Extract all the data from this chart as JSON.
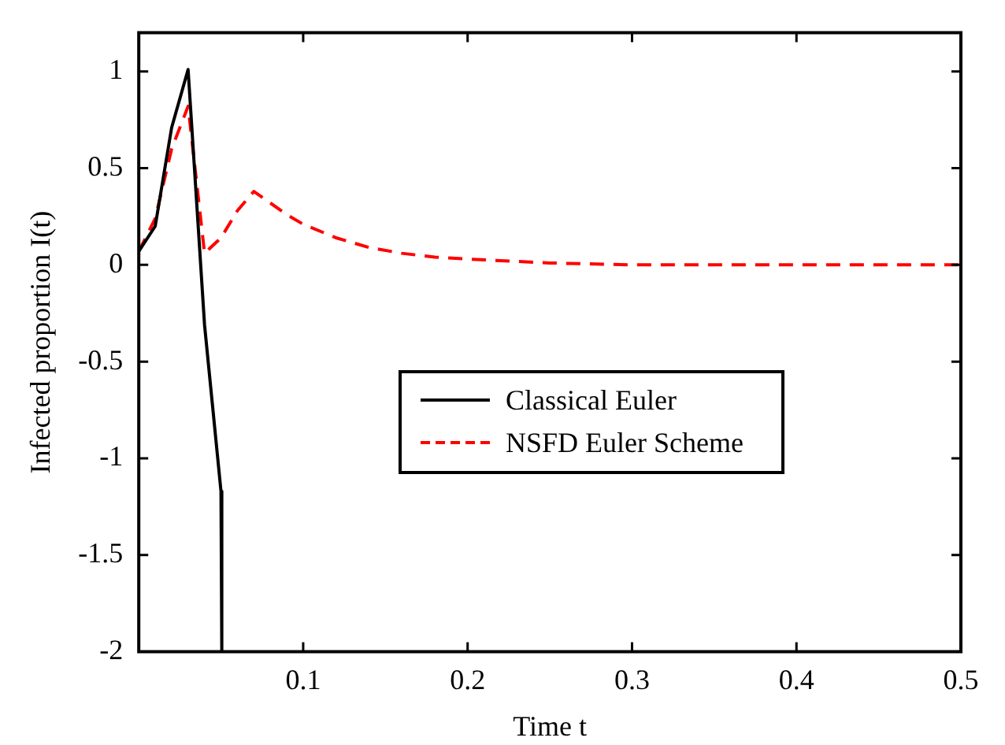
{
  "chart_data": {
    "type": "line",
    "xlabel": "Time t",
    "ylabel": "Infected proportion I(t)",
    "xlim": [
      0,
      0.5
    ],
    "xticks": [
      0.1,
      0.2,
      0.3,
      0.4,
      0.5
    ],
    "ylim": [
      -2,
      1.2
    ],
    "yticks": [
      -2,
      -1.5,
      -1,
      -0.5,
      0,
      0.5,
      1
    ],
    "grid": false,
    "legend": "right",
    "marker": "none",
    "series": [
      {
        "name": "Classical Euler",
        "color": "#000000",
        "line_style": "solid",
        "x": [
          0,
          0.01,
          0.02,
          0.03,
          0.04,
          0.05,
          0.0505
        ],
        "values": [
          0.07,
          0.2,
          0.71,
          1.01,
          -0.31,
          -1.17,
          -2
        ]
      },
      {
        "name": "NSFD Euler Scheme",
        "color": "#ff0000",
        "line_style": "dashed",
        "x": [
          0,
          0.01,
          0.02,
          0.03,
          0.04,
          0.05,
          0.06,
          0.07,
          0.08,
          0.09,
          0.1,
          0.12,
          0.14,
          0.16,
          0.18,
          0.2,
          0.25,
          0.3,
          0.4,
          0.5
        ],
        "values": [
          0.07,
          0.24,
          0.6,
          0.82,
          0.06,
          0.14,
          0.28,
          0.38,
          0.32,
          0.26,
          0.21,
          0.14,
          0.09,
          0.06,
          0.04,
          0.03,
          0.01,
          0,
          0,
          0
        ]
      }
    ]
  }
}
